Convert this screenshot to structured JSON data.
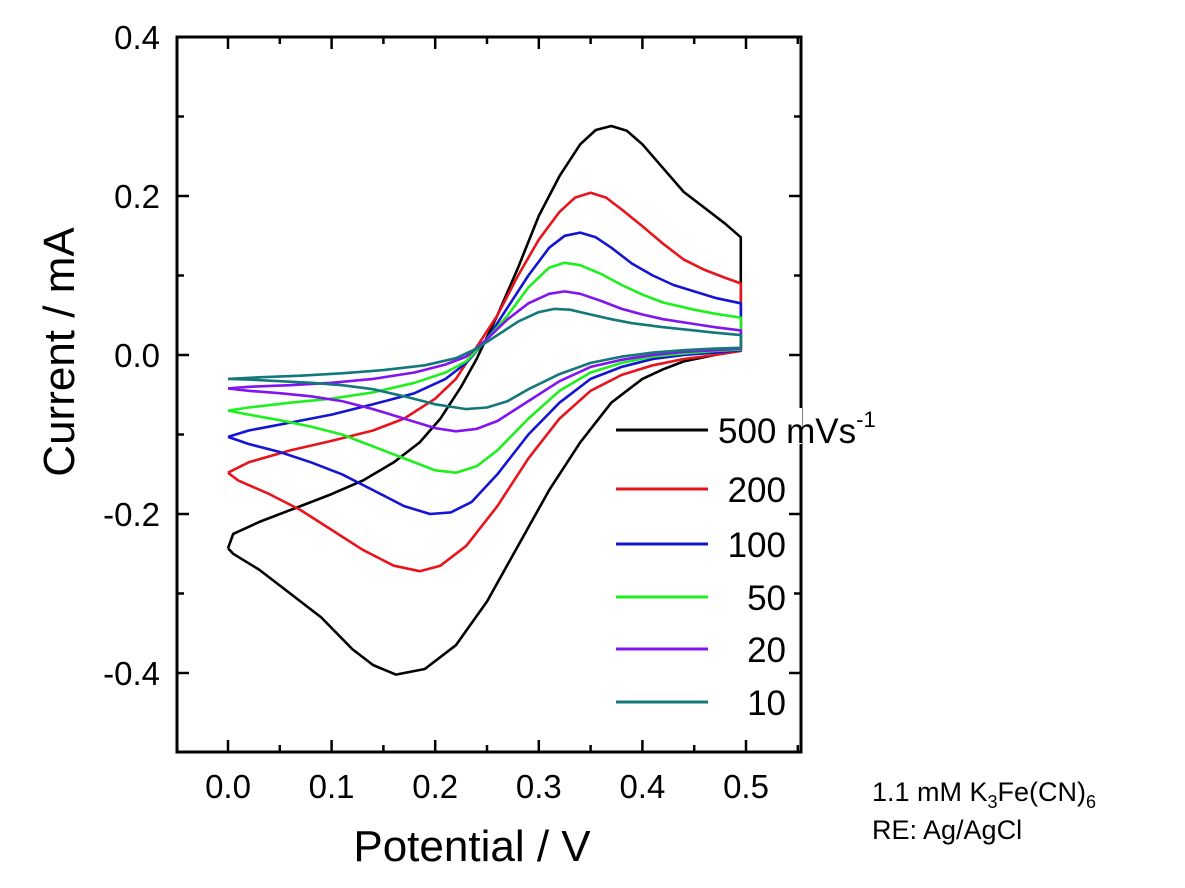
{
  "chart_data": {
    "type": "line",
    "title": "",
    "xlabel": "Potential / V",
    "ylabel": "Current / mA",
    "xlim": [
      -0.05,
      0.553
    ],
    "ylim": [
      -0.5,
      0.4
    ],
    "xticks": [
      0.0,
      0.1,
      0.2,
      0.3,
      0.4,
      0.5
    ],
    "xtick_labels": [
      "0.0",
      "0.1",
      "0.2",
      "0.3",
      "0.4",
      "0.5"
    ],
    "yticks": [
      0.4,
      0.2,
      0.0,
      -0.2,
      -0.4
    ],
    "ytick_labels": [
      "0.4",
      "0.2",
      "0.0",
      "-0.2",
      "-0.4"
    ],
    "grid": false,
    "legend_placement": "lower-right",
    "legend_title_unit": "mVs",
    "legend_unit_superscript": "-1",
    "annotations": [
      {
        "text": "1.1 mM K",
        "sub": "3",
        "text2": "Fe(CN)",
        "sub2": "6"
      },
      {
        "text": "RE: Ag/AgCl"
      }
    ],
    "series": [
      {
        "name": "500",
        "legend_label": "500 mVs",
        "color": "#000000",
        "points": [
          [
            0.0,
            -0.243
          ],
          [
            0.005,
            -0.225
          ],
          [
            0.03,
            -0.21
          ],
          [
            0.07,
            -0.19
          ],
          [
            0.1,
            -0.175
          ],
          [
            0.13,
            -0.158
          ],
          [
            0.16,
            -0.135
          ],
          [
            0.185,
            -0.11
          ],
          [
            0.205,
            -0.08
          ],
          [
            0.225,
            -0.04
          ],
          [
            0.24,
            -0.005
          ],
          [
            0.26,
            0.05
          ],
          [
            0.28,
            0.11
          ],
          [
            0.3,
            0.175
          ],
          [
            0.32,
            0.225
          ],
          [
            0.34,
            0.265
          ],
          [
            0.355,
            0.283
          ],
          [
            0.37,
            0.288
          ],
          [
            0.385,
            0.282
          ],
          [
            0.4,
            0.265
          ],
          [
            0.42,
            0.235
          ],
          [
            0.44,
            0.205
          ],
          [
            0.46,
            0.185
          ],
          [
            0.48,
            0.165
          ],
          [
            0.495,
            0.148
          ],
          [
            0.495,
            0.006
          ],
          [
            0.47,
            0.0
          ],
          [
            0.44,
            -0.008
          ],
          [
            0.42,
            -0.018
          ],
          [
            0.4,
            -0.03
          ],
          [
            0.37,
            -0.06
          ],
          [
            0.34,
            -0.11
          ],
          [
            0.31,
            -0.17
          ],
          [
            0.28,
            -0.24
          ],
          [
            0.25,
            -0.31
          ],
          [
            0.22,
            -0.365
          ],
          [
            0.19,
            -0.395
          ],
          [
            0.162,
            -0.402
          ],
          [
            0.14,
            -0.39
          ],
          [
            0.12,
            -0.37
          ],
          [
            0.09,
            -0.33
          ],
          [
            0.06,
            -0.3
          ],
          [
            0.03,
            -0.27
          ],
          [
            0.005,
            -0.25
          ],
          [
            0.0,
            -0.243
          ]
        ]
      },
      {
        "name": "200",
        "legend_label": "200",
        "color": "#e8141c",
        "points": [
          [
            0.0,
            -0.148
          ],
          [
            0.02,
            -0.135
          ],
          [
            0.06,
            -0.12
          ],
          [
            0.1,
            -0.108
          ],
          [
            0.14,
            -0.095
          ],
          [
            0.17,
            -0.08
          ],
          [
            0.2,
            -0.055
          ],
          [
            0.22,
            -0.03
          ],
          [
            0.24,
            0.01
          ],
          [
            0.26,
            0.05
          ],
          [
            0.28,
            0.1
          ],
          [
            0.3,
            0.145
          ],
          [
            0.32,
            0.18
          ],
          [
            0.335,
            0.198
          ],
          [
            0.35,
            0.204
          ],
          [
            0.365,
            0.198
          ],
          [
            0.38,
            0.183
          ],
          [
            0.4,
            0.162
          ],
          [
            0.42,
            0.14
          ],
          [
            0.44,
            0.12
          ],
          [
            0.46,
            0.107
          ],
          [
            0.48,
            0.097
          ],
          [
            0.495,
            0.09
          ],
          [
            0.495,
            0.005
          ],
          [
            0.47,
            0.0
          ],
          [
            0.44,
            -0.005
          ],
          [
            0.41,
            -0.013
          ],
          [
            0.38,
            -0.025
          ],
          [
            0.35,
            -0.045
          ],
          [
            0.32,
            -0.08
          ],
          [
            0.29,
            -0.13
          ],
          [
            0.26,
            -0.19
          ],
          [
            0.23,
            -0.24
          ],
          [
            0.205,
            -0.265
          ],
          [
            0.185,
            -0.272
          ],
          [
            0.16,
            -0.265
          ],
          [
            0.13,
            -0.245
          ],
          [
            0.1,
            -0.22
          ],
          [
            0.07,
            -0.195
          ],
          [
            0.04,
            -0.175
          ],
          [
            0.01,
            -0.158
          ],
          [
            0.0,
            -0.148
          ]
        ]
      },
      {
        "name": "100",
        "legend_label": "100",
        "color": "#1414d2",
        "points": [
          [
            0.0,
            -0.103
          ],
          [
            0.02,
            -0.095
          ],
          [
            0.06,
            -0.085
          ],
          [
            0.1,
            -0.075
          ],
          [
            0.14,
            -0.062
          ],
          [
            0.18,
            -0.048
          ],
          [
            0.21,
            -0.03
          ],
          [
            0.23,
            -0.01
          ],
          [
            0.25,
            0.02
          ],
          [
            0.27,
            0.06
          ],
          [
            0.29,
            0.1
          ],
          [
            0.31,
            0.135
          ],
          [
            0.325,
            0.15
          ],
          [
            0.34,
            0.154
          ],
          [
            0.355,
            0.148
          ],
          [
            0.37,
            0.135
          ],
          [
            0.39,
            0.115
          ],
          [
            0.41,
            0.1
          ],
          [
            0.43,
            0.088
          ],
          [
            0.45,
            0.08
          ],
          [
            0.47,
            0.072
          ],
          [
            0.495,
            0.065
          ],
          [
            0.495,
            0.006
          ],
          [
            0.47,
            0.003
          ],
          [
            0.44,
            0.0
          ],
          [
            0.41,
            -0.005
          ],
          [
            0.38,
            -0.015
          ],
          [
            0.35,
            -0.03
          ],
          [
            0.32,
            -0.06
          ],
          [
            0.29,
            -0.1
          ],
          [
            0.26,
            -0.15
          ],
          [
            0.235,
            -0.185
          ],
          [
            0.215,
            -0.198
          ],
          [
            0.195,
            -0.2
          ],
          [
            0.17,
            -0.19
          ],
          [
            0.14,
            -0.17
          ],
          [
            0.11,
            -0.15
          ],
          [
            0.08,
            -0.135
          ],
          [
            0.05,
            -0.122
          ],
          [
            0.02,
            -0.112
          ],
          [
            0.0,
            -0.103
          ]
        ]
      },
      {
        "name": "50",
        "legend_label": "50",
        "color": "#1ef01e",
        "points": [
          [
            0.0,
            -0.07
          ],
          [
            0.02,
            -0.066
          ],
          [
            0.06,
            -0.06
          ],
          [
            0.1,
            -0.055
          ],
          [
            0.14,
            -0.047
          ],
          [
            0.18,
            -0.035
          ],
          [
            0.21,
            -0.022
          ],
          [
            0.23,
            -0.008
          ],
          [
            0.25,
            0.02
          ],
          [
            0.27,
            0.05
          ],
          [
            0.29,
            0.085
          ],
          [
            0.31,
            0.11
          ],
          [
            0.325,
            0.116
          ],
          [
            0.34,
            0.113
          ],
          [
            0.36,
            0.102
          ],
          [
            0.38,
            0.088
          ],
          [
            0.4,
            0.076
          ],
          [
            0.42,
            0.066
          ],
          [
            0.45,
            0.057
          ],
          [
            0.47,
            0.052
          ],
          [
            0.495,
            0.047
          ],
          [
            0.495,
            0.007
          ],
          [
            0.47,
            0.005
          ],
          [
            0.44,
            0.002
          ],
          [
            0.41,
            -0.002
          ],
          [
            0.38,
            -0.01
          ],
          [
            0.35,
            -0.022
          ],
          [
            0.32,
            -0.045
          ],
          [
            0.29,
            -0.08
          ],
          [
            0.26,
            -0.12
          ],
          [
            0.24,
            -0.14
          ],
          [
            0.22,
            -0.148
          ],
          [
            0.2,
            -0.145
          ],
          [
            0.17,
            -0.13
          ],
          [
            0.14,
            -0.115
          ],
          [
            0.11,
            -0.1
          ],
          [
            0.08,
            -0.09
          ],
          [
            0.05,
            -0.082
          ],
          [
            0.02,
            -0.075
          ],
          [
            0.0,
            -0.07
          ]
        ]
      },
      {
        "name": "20",
        "legend_label": "20",
        "color": "#8214f0",
        "points": [
          [
            0.0,
            -0.042
          ],
          [
            0.02,
            -0.04
          ],
          [
            0.06,
            -0.038
          ],
          [
            0.1,
            -0.035
          ],
          [
            0.14,
            -0.03
          ],
          [
            0.18,
            -0.022
          ],
          [
            0.21,
            -0.012
          ],
          [
            0.23,
            -0.002
          ],
          [
            0.25,
            0.02
          ],
          [
            0.27,
            0.045
          ],
          [
            0.29,
            0.065
          ],
          [
            0.31,
            0.077
          ],
          [
            0.325,
            0.08
          ],
          [
            0.34,
            0.077
          ],
          [
            0.36,
            0.068
          ],
          [
            0.38,
            0.058
          ],
          [
            0.4,
            0.051
          ],
          [
            0.42,
            0.045
          ],
          [
            0.45,
            0.039
          ],
          [
            0.47,
            0.035
          ],
          [
            0.495,
            0.031
          ],
          [
            0.495,
            0.008
          ],
          [
            0.47,
            0.006
          ],
          [
            0.44,
            0.004
          ],
          [
            0.41,
            0.0
          ],
          [
            0.38,
            -0.006
          ],
          [
            0.35,
            -0.015
          ],
          [
            0.32,
            -0.033
          ],
          [
            0.29,
            -0.058
          ],
          [
            0.26,
            -0.083
          ],
          [
            0.24,
            -0.093
          ],
          [
            0.22,
            -0.096
          ],
          [
            0.2,
            -0.092
          ],
          [
            0.17,
            -0.08
          ],
          [
            0.14,
            -0.068
          ],
          [
            0.11,
            -0.058
          ],
          [
            0.08,
            -0.052
          ],
          [
            0.05,
            -0.048
          ],
          [
            0.02,
            -0.045
          ],
          [
            0.0,
            -0.042
          ]
        ]
      },
      {
        "name": "10",
        "legend_label": "10",
        "color": "#14787a",
        "points": [
          [
            0.0,
            -0.03
          ],
          [
            0.03,
            -0.028
          ],
          [
            0.07,
            -0.026
          ],
          [
            0.11,
            -0.023
          ],
          [
            0.15,
            -0.019
          ],
          [
            0.19,
            -0.013
          ],
          [
            0.22,
            -0.004
          ],
          [
            0.24,
            0.008
          ],
          [
            0.26,
            0.025
          ],
          [
            0.28,
            0.042
          ],
          [
            0.3,
            0.054
          ],
          [
            0.315,
            0.058
          ],
          [
            0.33,
            0.057
          ],
          [
            0.35,
            0.051
          ],
          [
            0.37,
            0.045
          ],
          [
            0.39,
            0.04
          ],
          [
            0.42,
            0.035
          ],
          [
            0.45,
            0.031
          ],
          [
            0.47,
            0.028
          ],
          [
            0.495,
            0.025
          ],
          [
            0.495,
            0.009
          ],
          [
            0.47,
            0.008
          ],
          [
            0.44,
            0.006
          ],
          [
            0.41,
            0.003
          ],
          [
            0.38,
            -0.002
          ],
          [
            0.35,
            -0.01
          ],
          [
            0.32,
            -0.024
          ],
          [
            0.29,
            -0.043
          ],
          [
            0.27,
            -0.058
          ],
          [
            0.25,
            -0.066
          ],
          [
            0.23,
            -0.068
          ],
          [
            0.2,
            -0.062
          ],
          [
            0.17,
            -0.052
          ],
          [
            0.14,
            -0.043
          ],
          [
            0.11,
            -0.038
          ],
          [
            0.08,
            -0.035
          ],
          [
            0.05,
            -0.033
          ],
          [
            0.02,
            -0.031
          ],
          [
            0.0,
            -0.03
          ]
        ]
      }
    ]
  }
}
